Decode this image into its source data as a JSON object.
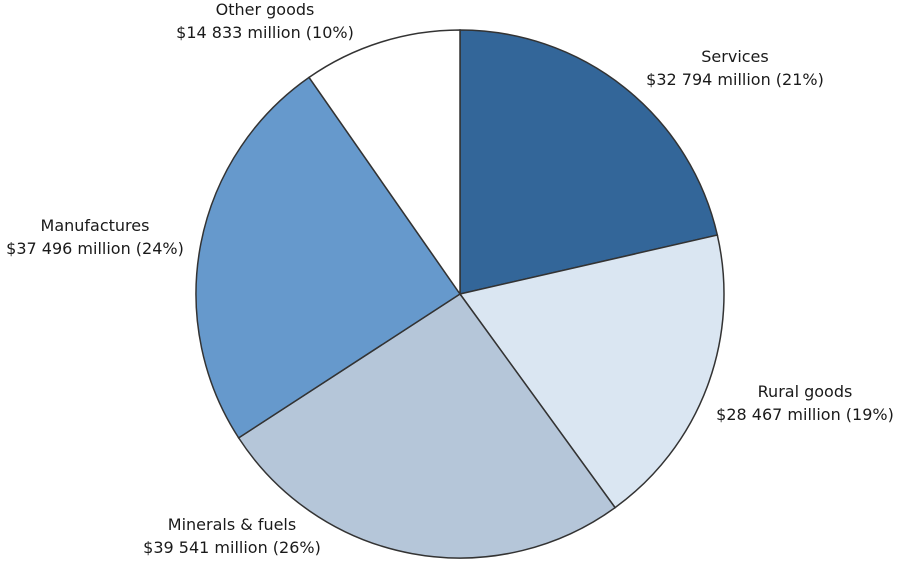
{
  "chart_data": {
    "type": "pie",
    "title": "",
    "slices": [
      {
        "category": "Services",
        "value": 32794,
        "value_label": "$32 794 million (21%)",
        "percent": 21,
        "color": "#336699"
      },
      {
        "category": "Rural goods",
        "value": 28467,
        "value_label": "$28 467 million (19%)",
        "percent": 19,
        "color": "#dae6f2"
      },
      {
        "category": "Minerals & fuels",
        "value": 39541,
        "value_label": "$39 541 million (26%)",
        "percent": 26,
        "color": "#b5c6d9"
      },
      {
        "category": "Manufactures",
        "value": 37496,
        "value_label": "$37 496 million (24%)",
        "percent": 24,
        "color": "#6699cc"
      },
      {
        "category": "Other goods",
        "value": 14833,
        "value_label": "$14 833 million (10%)",
        "percent": 10,
        "color": "#ffffff"
      }
    ],
    "start": "12 o'clock",
    "direction": "clockwise",
    "legend": "none"
  }
}
